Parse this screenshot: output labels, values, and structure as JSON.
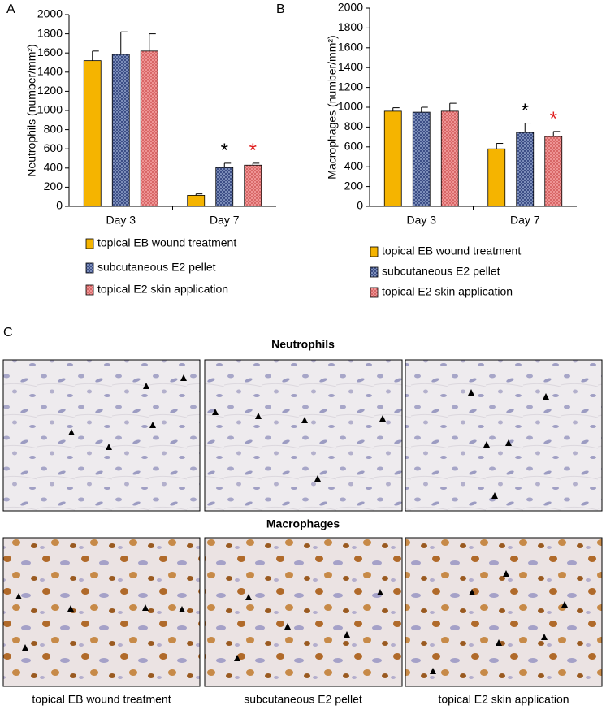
{
  "chart_data": [
    {
      "type": "bar",
      "panel_label": "A",
      "ylabel": "Neutrophils (number/mm²)",
      "categories": [
        "Day 3",
        "Day 7"
      ],
      "ylim": [
        0,
        2000
      ],
      "yticks": [
        0,
        200,
        400,
        600,
        800,
        1000,
        1200,
        1400,
        1600,
        1800,
        2000
      ],
      "series": [
        {
          "name": "topical EB  wound treatment",
          "color": "#f5b400",
          "values": [
            1520,
            115
          ],
          "errors": [
            100,
            15
          ],
          "significance": [
            null,
            null
          ]
        },
        {
          "name": "subcutaneous E2 pellet",
          "color": "#8c9dc6",
          "values": [
            1585,
            405
          ],
          "errors": [
            235,
            45
          ],
          "significance": [
            null,
            "*"
          ],
          "significance_color": "#000000"
        },
        {
          "name": "topical E2 skin application",
          "color": "#f29a9a",
          "values": [
            1620,
            430
          ],
          "errors": [
            180,
            20
          ],
          "significance": [
            null,
            "*"
          ],
          "significance_color": "#e02020"
        }
      ]
    },
    {
      "type": "bar",
      "panel_label": "B",
      "ylabel": "Macrophages (number/mm²)",
      "categories": [
        "Day 3",
        "Day 7"
      ],
      "ylim": [
        0,
        2000
      ],
      "yticks": [
        0,
        200,
        400,
        600,
        800,
        1000,
        1200,
        1400,
        1600,
        1800,
        2000
      ],
      "series": [
        {
          "name": "topical EB wound treatment",
          "color": "#f5b400",
          "values": [
            960,
            580
          ],
          "errors": [
            35,
            55
          ],
          "significance": [
            null,
            null
          ]
        },
        {
          "name": "subcutaneous E2 pellet",
          "color": "#8c9dc6",
          "values": [
            950,
            745
          ],
          "errors": [
            50,
            95
          ],
          "significance": [
            null,
            "*"
          ],
          "significance_color": "#000000"
        },
        {
          "name": "topical E2 skin application",
          "color": "#f29a9a",
          "values": [
            960,
            705
          ],
          "errors": [
            80,
            50
          ],
          "significance": [
            null,
            "*"
          ],
          "significance_color": "#e02020"
        }
      ]
    }
  ],
  "panel_c": {
    "label": "C",
    "rows": [
      "Neutrophils",
      "Macrophages"
    ],
    "columns": [
      "topical EB wound treatment",
      "subcutaneous E2 pellet",
      "topical E2 skin application"
    ]
  }
}
